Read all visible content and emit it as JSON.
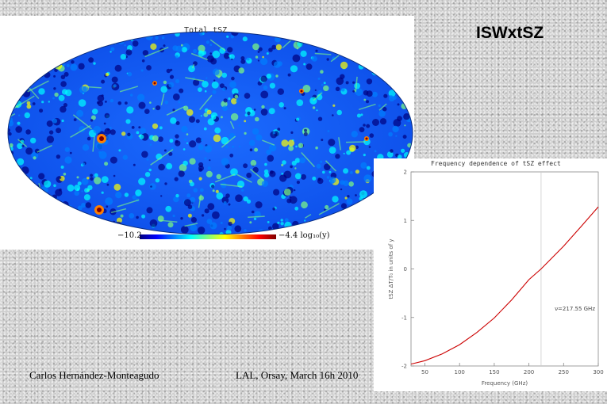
{
  "slide": {
    "title": "ISWxtSZ",
    "author": "Carlos Hernández-Monteagudo",
    "event": "LAL, Orsay, March 16h 2010"
  },
  "map": {
    "title": "Total tSZ",
    "scale_min_label": "−10.2",
    "scale_max_label": "−4.4 log₁₀(y)",
    "colormap": [
      "#00007f",
      "#0000ff",
      "#007fff",
      "#00ffff",
      "#7fff7f",
      "#ffff00",
      "#ff7f00",
      "#ff0000",
      "#7f0000"
    ]
  },
  "chart_data": {
    "type": "line",
    "title": "Frequency dependence of tSZ effect",
    "xlabel": "Frequency (GHz)",
    "ylabel": "tSZ ΔT/T₀ in units of y",
    "xlim": [
      30,
      300
    ],
    "ylim": [
      -2,
      2
    ],
    "x_ticks": [
      50,
      100,
      150,
      200,
      250,
      300
    ],
    "x_tick_labels": [
      "50",
      "100",
      "150",
      "200",
      "250",
      "300"
    ],
    "y_ticks": [
      -2,
      -1,
      0,
      1,
      2
    ],
    "y_tick_labels": [
      "-2",
      "-1",
      "0",
      "1",
      "2"
    ],
    "series": [
      {
        "color": "#cc0000",
        "x": [
          30,
          50,
          75,
          100,
          125,
          150,
          175,
          200,
          217.55,
          250,
          275,
          300
        ],
        "y": [
          -1.96,
          -1.89,
          -1.75,
          -1.56,
          -1.31,
          -1.01,
          -0.64,
          -0.22,
          0.0,
          0.47,
          0.87,
          1.28
        ]
      }
    ],
    "reference_line_x": 217.55,
    "annotation": "ν=217.55 GHz",
    "grid": false
  }
}
